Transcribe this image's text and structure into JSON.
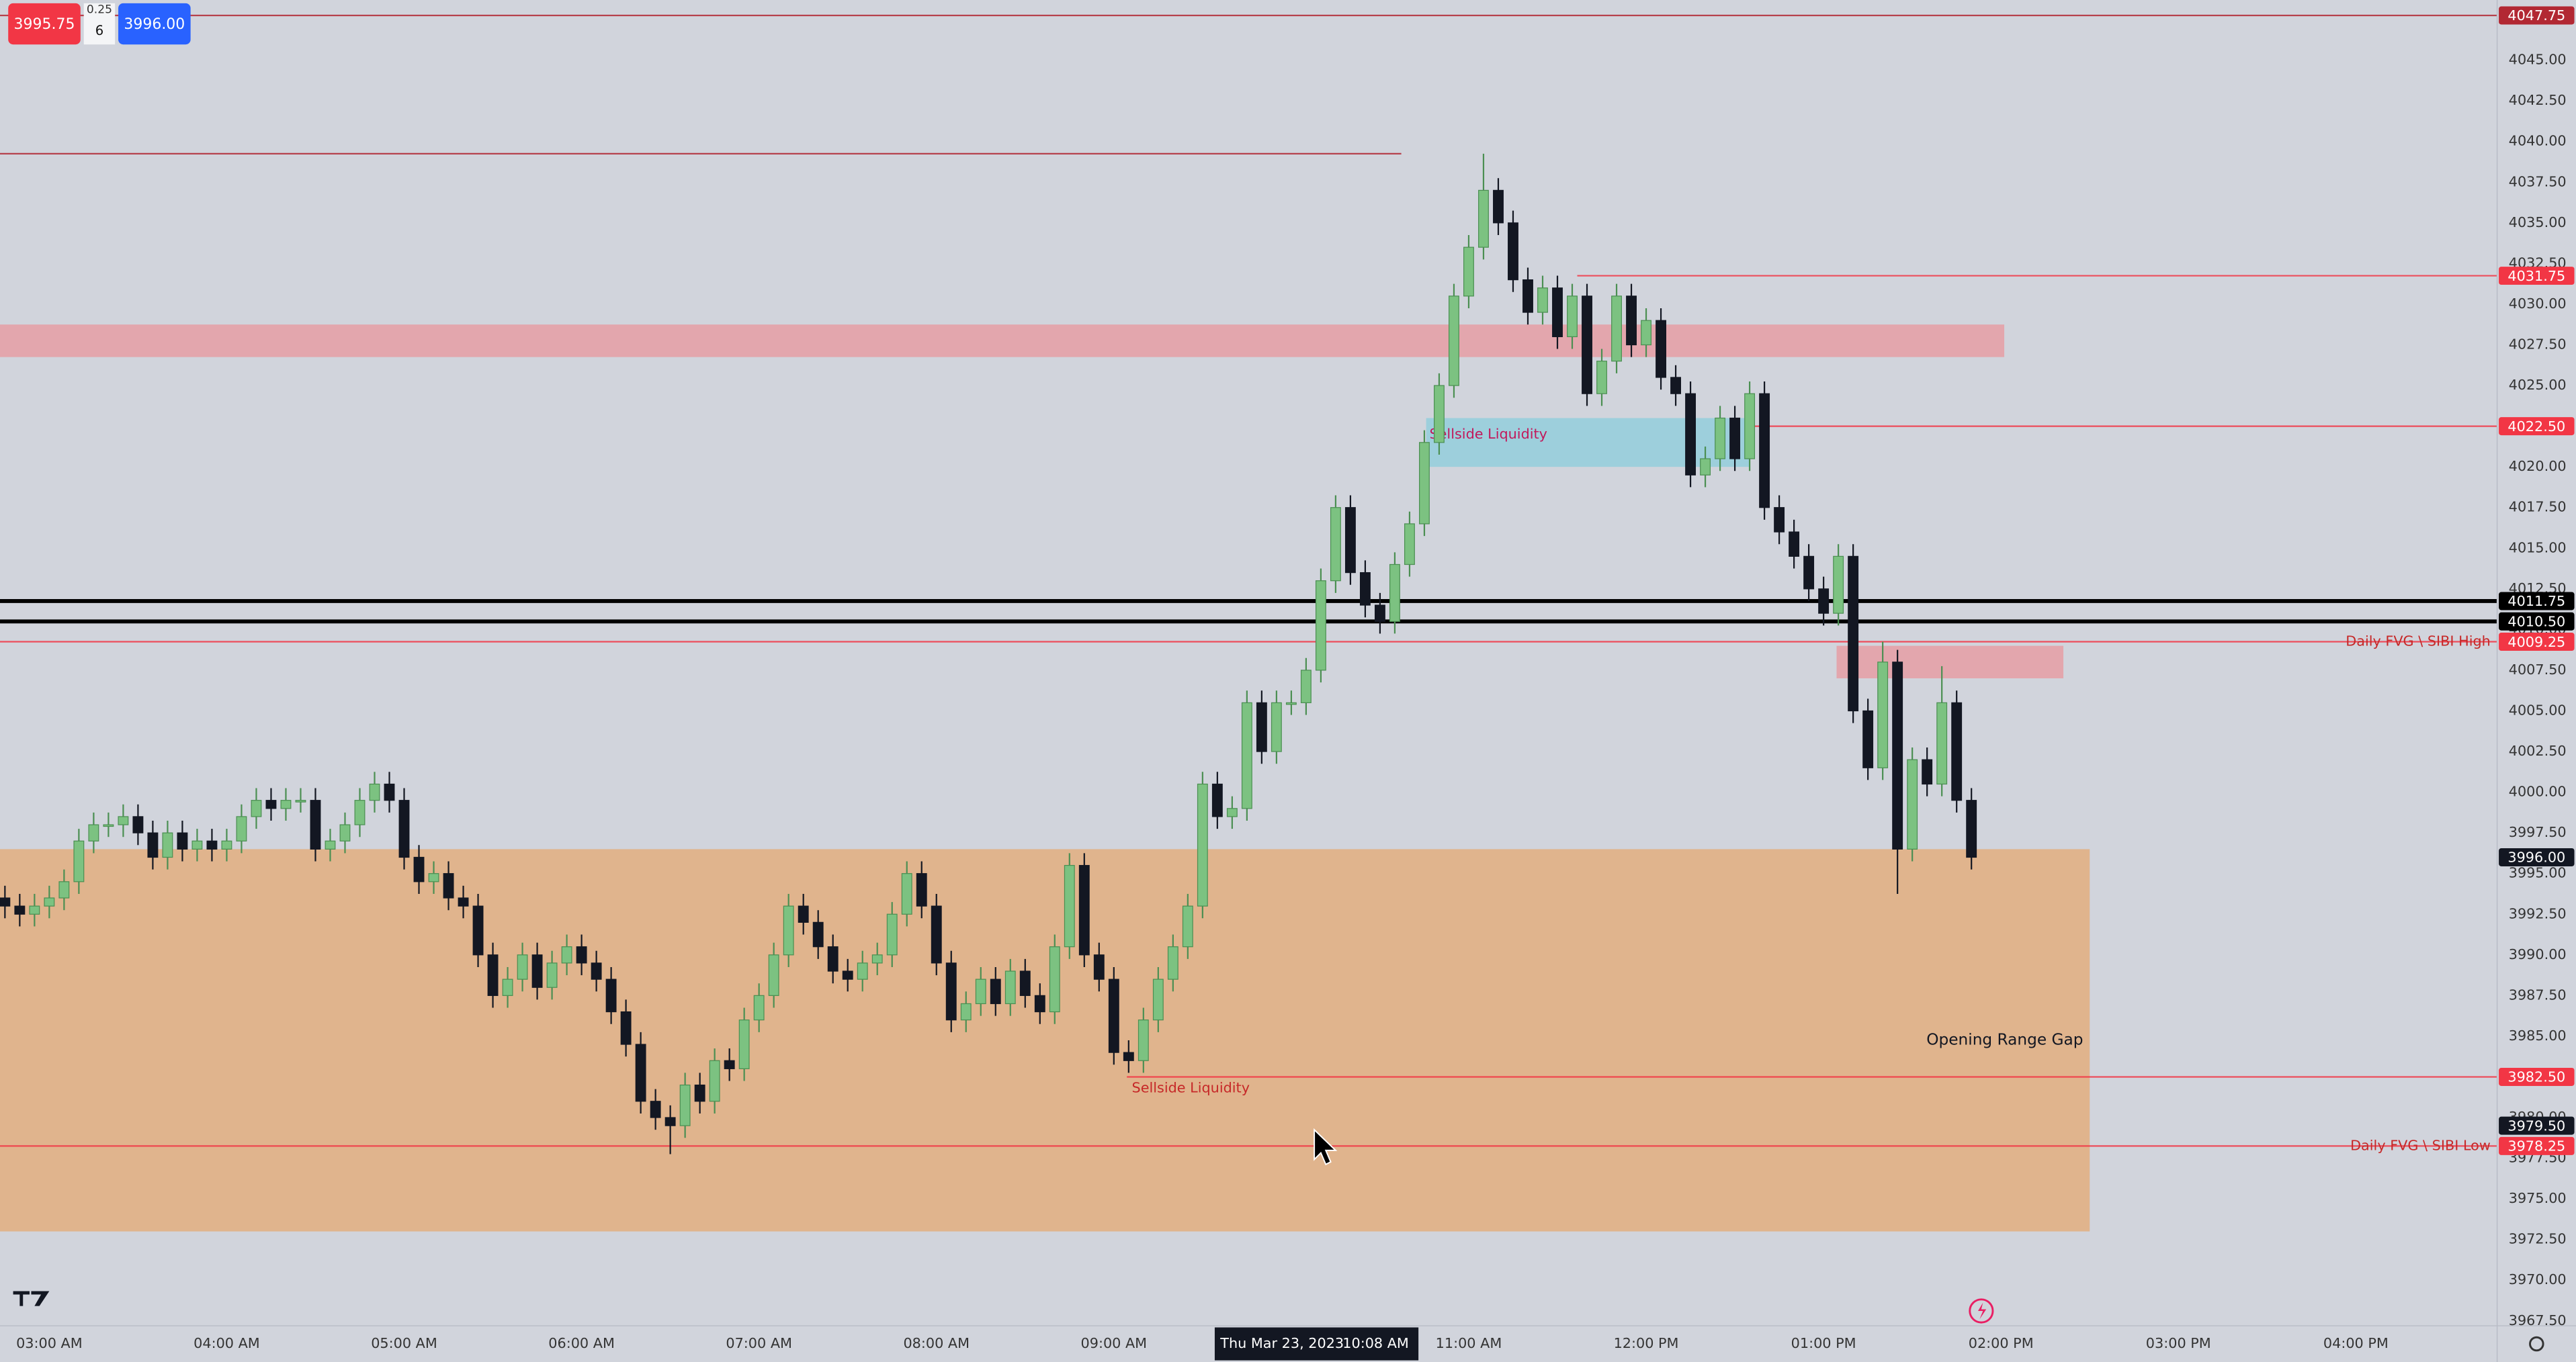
{
  "header": {
    "bid": "3995.75",
    "spread": "0.25",
    "quantity": "6",
    "ask": "3996.00"
  },
  "chart_data": {
    "type": "candlestick",
    "x": [
      165,
      170,
      175,
      180,
      185,
      190,
      195,
      200,
      205,
      210,
      215,
      220,
      225,
      230,
      235,
      240,
      245,
      250,
      255,
      260,
      265,
      270,
      275,
      280,
      285,
      290,
      295,
      300,
      305,
      310,
      315,
      320,
      325,
      330,
      335,
      340,
      345,
      350,
      355,
      360,
      365,
      370,
      375,
      380,
      385,
      390,
      395,
      400,
      405,
      410,
      415,
      420,
      425,
      430,
      435,
      440,
      445,
      450,
      455,
      460,
      465,
      470,
      475,
      480,
      485,
      490,
      495,
      500,
      505,
      510,
      515,
      520,
      525,
      530,
      535,
      540,
      545,
      550,
      555,
      560,
      565,
      570,
      575,
      580,
      585,
      590,
      595,
      600,
      605,
      610,
      615,
      620,
      625,
      630,
      635,
      640,
      645,
      650,
      655,
      660,
      665,
      670,
      675,
      680,
      685,
      690,
      695,
      700,
      705,
      710,
      715,
      720,
      725,
      730,
      735,
      740,
      745,
      750,
      755,
      760,
      765,
      770,
      775,
      780,
      785,
      790,
      795,
      800,
      805,
      810,
      815,
      820,
      825,
      830
    ],
    "open": [
      3993.5,
      3993,
      3992.5,
      3993,
      3993.5,
      3994.5,
      3997,
      3998,
      3998,
      3998.5,
      3997.5,
      3996,
      3997.5,
      3996.5,
      3997,
      3996.5,
      3997,
      3998.5,
      3999.5,
      3999,
      3999.5,
      3999.5,
      3996.5,
      3997,
      3998,
      3999.5,
      4000.5,
      3999.5,
      3996,
      3994.5,
      3995,
      3993.5,
      3993,
      3990,
      3987.5,
      3988.5,
      3990,
      3988,
      3989.5,
      3990.5,
      3989.5,
      3988.5,
      3986.5,
      3984.5,
      3981,
      3980,
      3979.5,
      3982,
      3981,
      3983.5,
      3983,
      3986,
      3987.5,
      3990,
      3993,
      3992,
      3990.5,
      3989,
      3988.5,
      3989.5,
      3990,
      3992.5,
      3995,
      3993,
      3989.5,
      3986,
      3987,
      3988.5,
      3987,
      3989,
      3987.5,
      3986.5,
      3990.5,
      3995.5,
      3990,
      3988.5,
      3984,
      3983.5,
      3986,
      3988.5,
      3990.5,
      3993,
      4000.5,
      3998.5,
      3999,
      4005.5,
      4002.5,
      4005.5,
      4005.5,
      4007.5,
      4013,
      4017.5,
      4013.5,
      4011.5,
      4010.5,
      4014,
      4016.5,
      4021.5,
      4025,
      4030.5,
      4033.5,
      4037,
      4035,
      4031.5,
      4029.5,
      4031,
      4028,
      4030.5,
      4024.5,
      4026.5,
      4030.5,
      4027.5,
      4029,
      4025.5,
      4024.5,
      4019.5,
      4020.5,
      4023,
      4020.5,
      4024.5,
      4017.5,
      4016,
      4014.5,
      4012.5,
      4011,
      4014.5,
      4005,
      4001.5,
      4008,
      3996.5,
      4002,
      4000.5,
      4005.5,
      3999.5
    ],
    "high": [
      3994.25,
      3993.75,
      3993.75,
      3994.25,
      3995.25,
      3997.75,
      3998.75,
      3998.75,
      3999.25,
      3999.25,
      3998.25,
      3998.25,
      3998.25,
      3997.75,
      3997.75,
      3997.75,
      3999.25,
      4000.25,
      4000.25,
      4000.25,
      4000.25,
      4000.25,
      3997.75,
      3998.75,
      4000.25,
      4001.25,
      4001.25,
      4000.25,
      3996.75,
      3995.75,
      3995.75,
      3994.25,
      3993.75,
      3990.75,
      3989.25,
      3990.75,
      3990.75,
      3990.25,
      3991.25,
      3991.25,
      3990.25,
      3989.25,
      3987.25,
      3985.25,
      3981.75,
      3980.75,
      3982.75,
      3982.75,
      3984.25,
      3984.25,
      3986.75,
      3988.25,
      3990.75,
      3993.75,
      3993.75,
      3992.75,
      3991.25,
      3989.75,
      3990.25,
      3990.75,
      3993.25,
      3995.75,
      3995.75,
      3993.75,
      3990.25,
      3987.75,
      3989.25,
      3989.25,
      3989.75,
      3989.75,
      3988.25,
      3991.25,
      3996.25,
      3996.25,
      3990.75,
      3989.25,
      3984.75,
      3986.75,
      3989.25,
      3991.25,
      3993.75,
      4001.25,
      4001.25,
      3999.75,
      4006.25,
      4006.25,
      4006.25,
      4006.25,
      4008.25,
      4013.75,
      4018.25,
      4018.25,
      4014.25,
      4012.25,
      4014.75,
      4017.25,
      4022.25,
      4025.75,
      4031.25,
      4034.25,
      4039.25,
      4037.75,
      4035.75,
      4032.25,
      4031.75,
      4031.75,
      4031.25,
      4031.25,
      4027.25,
      4031.25,
      4031.25,
      4029.75,
      4029.75,
      4026.25,
      4025.25,
      4021.25,
      4023.75,
      4023.75,
      4025.25,
      4025.25,
      4018.25,
      4016.75,
      4015.25,
      4013.25,
      4015.25,
      4015.25,
      4005.75,
      4009.25,
      4008.75,
      4002.75,
      4002.75,
      4007.75,
      4006.25,
      4000.25
    ],
    "low": [
      3992.25,
      3991.75,
      3991.75,
      3992.25,
      3992.75,
      3993.75,
      3996.25,
      3997.25,
      3997.25,
      3996.75,
      3995.25,
      3995.25,
      3995.75,
      3995.75,
      3995.75,
      3995.75,
      3996.25,
      3997.75,
      3998.25,
      3998.25,
      3998.75,
      3995.75,
      3995.75,
      3996.25,
      3997.25,
      3998.75,
      3998.75,
      3995.25,
      3993.75,
      3993.75,
      3992.75,
      3992.25,
      3989.25,
      3986.75,
      3986.75,
      3987.75,
      3987.25,
      3987.25,
      3988.75,
      3988.75,
      3987.75,
      3985.75,
      3983.75,
      3980.25,
      3979.25,
      3977.75,
      3978.75,
      3980.25,
      3980.25,
      3982.25,
      3982.25,
      3985.25,
      3986.75,
      3989.25,
      3991.25,
      3989.75,
      3988.25,
      3987.75,
      3987.75,
      3988.75,
      3989.25,
      3991.75,
      3992.25,
      3988.75,
      3985.25,
      3985.25,
      3986.25,
      3986.25,
      3986.25,
      3986.75,
      3985.75,
      3985.75,
      3989.75,
      3989.25,
      3987.75,
      3983.25,
      3982.75,
      3982.75,
      3985.25,
      3987.75,
      3989.75,
      3992.25,
      3997.75,
      3997.75,
      3998.25,
      4001.75,
      4001.75,
      4004.75,
      4004.75,
      4006.75,
      4012.25,
      4012.75,
      4010.75,
      4009.75,
      4009.75,
      4013.25,
      4015.75,
      4020.75,
      4024.25,
      4029.75,
      4032.75,
      4034.25,
      4030.75,
      4028.75,
      4028.75,
      4027.25,
      4027.25,
      4023.75,
      4023.75,
      4025.75,
      4026.75,
      4026.75,
      4024.75,
      4023.75,
      4018.75,
      4018.75,
      4019.75,
      4019.75,
      4019.75,
      4016.75,
      4015.25,
      4013.75,
      4011.75,
      4010.25,
      4010.25,
      4004.25,
      4000.75,
      4000.75,
      3993.75,
      3995.75,
      3999.75,
      3999.75,
      3998.75,
      3995.25
    ],
    "close": [
      3993,
      3992.5,
      3993,
      3993.5,
      3994.5,
      3997,
      3998,
      3998,
      3998.5,
      3997.5,
      3996,
      3997.5,
      3996.5,
      3997,
      3996.5,
      3997,
      3998.5,
      3999.5,
      3999,
      3999.5,
      3999.5,
      3996.5,
      3997,
      3998,
      3999.5,
      4000.5,
      3999.5,
      3996,
      3994.5,
      3995,
      3993.5,
      3993,
      3990,
      3987.5,
      3988.5,
      3990,
      3988,
      3989.5,
      3990.5,
      3989.5,
      3988.5,
      3986.5,
      3984.5,
      3981,
      3980,
      3979.5,
      3982,
      3981,
      3983.5,
      3983,
      3986,
      3987.5,
      3990,
      3993,
      3992,
      3990.5,
      3989,
      3988.5,
      3989.5,
      3990,
      3992.5,
      3995,
      3993,
      3989.5,
      3986,
      3987,
      3988.5,
      3987,
      3989,
      3987.5,
      3986.5,
      3990.5,
      3995.5,
      3990,
      3988.5,
      3984,
      3983.5,
      3986,
      3988.5,
      3990.5,
      3993,
      4000.5,
      3998.5,
      3999,
      4005.5,
      4002.5,
      4005.5,
      4005.5,
      4007.5,
      4013,
      4017.5,
      4013.5,
      4011.5,
      4010.5,
      4014,
      4016.5,
      4021.5,
      4025,
      4030.5,
      4033.5,
      4037,
      4035,
      4031.5,
      4029.5,
      4031,
      4028,
      4030.5,
      4024.5,
      4026.5,
      4030.5,
      4027.5,
      4029,
      4025.5,
      4024.5,
      4019.5,
      4020.5,
      4023,
      4020.5,
      4024.5,
      4017.5,
      4016,
      4014.5,
      4012.5,
      4011,
      4014.5,
      4005,
      4001.5,
      4008,
      3996.5,
      4002,
      4000.5,
      4005.5,
      3999.5,
      3996
    ],
    "up_color": "#7cc281",
    "down_color": "#131722",
    "xlim": [
      163.33,
      1007.78
    ],
    "xticks": [
      {
        "value": 180,
        "label": "03:00 AM"
      },
      {
        "value": 240,
        "label": "04:00 AM"
      },
      {
        "value": 300,
        "label": "05:00 AM"
      },
      {
        "value": 360,
        "label": "06:00 AM"
      },
      {
        "value": 420,
        "label": "07:00 AM"
      },
      {
        "value": 480,
        "label": "08:00 AM"
      },
      {
        "value": 540,
        "label": "09:00 AM"
      },
      {
        "value": 660,
        "label": "11:00 AM"
      },
      {
        "value": 720,
        "label": "12:00 PM"
      },
      {
        "value": 780,
        "label": "01:00 PM"
      },
      {
        "value": 840,
        "label": "02:00 PM"
      },
      {
        "value": 900,
        "label": "03:00 PM"
      },
      {
        "value": 960,
        "label": "04:00 PM"
      }
    ],
    "ylim": [
      3967.2,
      4048.7
    ],
    "yticks": [
      {
        "value": 3967.5,
        "label": "3967.50"
      },
      {
        "value": 3970,
        "label": "3970.00"
      },
      {
        "value": 3972.5,
        "label": "3972.50"
      },
      {
        "value": 3975,
        "label": "3975.00"
      },
      {
        "value": 3977.5,
        "label": "3977.50"
      },
      {
        "value": 3980,
        "label": "3980.00"
      },
      {
        "value": 3982.5,
        "label": "3982.50"
      },
      {
        "value": 3985,
        "label": "3985.00"
      },
      {
        "value": 3987.5,
        "label": "3987.50"
      },
      {
        "value": 3990,
        "label": "3990.00"
      },
      {
        "value": 3992.5,
        "label": "3992.50"
      },
      {
        "value": 3995,
        "label": "3995.00"
      },
      {
        "value": 3997.5,
        "label": "3997.50"
      },
      {
        "value": 4000,
        "label": "4000.00"
      },
      {
        "value": 4002.5,
        "label": "4002.50"
      },
      {
        "value": 4005,
        "label": "4005.00"
      },
      {
        "value": 4007.5,
        "label": "4007.50"
      },
      {
        "value": 4010,
        "label": "4010.00"
      },
      {
        "value": 4012.5,
        "label": "4012.50"
      },
      {
        "value": 4015,
        "label": "4015.00"
      },
      {
        "value": 4017.5,
        "label": "4017.50"
      },
      {
        "value": 4020,
        "label": "4020.00"
      },
      {
        "value": 4022.5,
        "label": "4022.50"
      },
      {
        "value": 4025,
        "label": "4025.00"
      },
      {
        "value": 4027.5,
        "label": "4027.50"
      },
      {
        "value": 4030,
        "label": "4030.00"
      },
      {
        "value": 4032.5,
        "label": "4032.50"
      },
      {
        "value": 4035,
        "label": "4035.00"
      },
      {
        "value": 4037.5,
        "label": "4037.50"
      },
      {
        "value": 4040,
        "label": "4040.00"
      },
      {
        "value": 4042.5,
        "label": "4042.50"
      },
      {
        "value": 4045,
        "label": "4045.00"
      }
    ],
    "zones": [
      {
        "y0": 3973,
        "y1": 3996.5,
        "x0": 163.33,
        "x1": 870,
        "color": "#e0b48d",
        "label": "Opening Range Gap"
      },
      {
        "y0": 4026.75,
        "y1": 4028.75,
        "x0": 163.33,
        "x1": 841.1,
        "color": "#e3a6ad"
      },
      {
        "y0": 4020,
        "y1": 4023,
        "x0": 645.6,
        "x1": 755,
        "color": "#9dcfdc",
        "label": "Sellside Liquidity"
      },
      {
        "y0": 4007,
        "y1": 4009,
        "x0": 784.4,
        "x1": 861.1,
        "color": "#e3a6ad"
      }
    ],
    "levels": [
      {
        "value": 4047.75,
        "label": "4047.75",
        "color": "#b22833"
      },
      {
        "value": 4039.25,
        "color": "#b22833",
        "end": 637.2
      },
      {
        "value": 4031.75,
        "label": "4031.75",
        "color": "#f23645",
        "start": 696.7
      },
      {
        "value": 4022.5,
        "label": "4022.50",
        "color": "#f23645",
        "start": 755
      },
      {
        "value": 4011.75,
        "label": "4011.75",
        "color": "#000000"
      },
      {
        "value": 4010.5,
        "label": "4010.50",
        "color": "#000000"
      },
      {
        "value": 4009.25,
        "label": "4009.25",
        "color": "#f23645",
        "note": "Daily FVG \\ SIBI High"
      },
      {
        "value": 3982.5,
        "label": "3982.50",
        "color": "#f23645",
        "start": 544.4,
        "note": "Sellside Liquidity"
      },
      {
        "value": 3978.25,
        "label": "3978.25",
        "color": "#f23645",
        "note": "Daily FVG \\ SIBI Low"
      }
    ],
    "last_price": {
      "value": 3996,
      "label": "3996.00"
    },
    "crosshair": {
      "x": 608,
      "y": 3979.5,
      "price_label": "3979.50",
      "date_label": "Thu Mar 23, 2023",
      "time_label": "10:08 AM"
    }
  }
}
